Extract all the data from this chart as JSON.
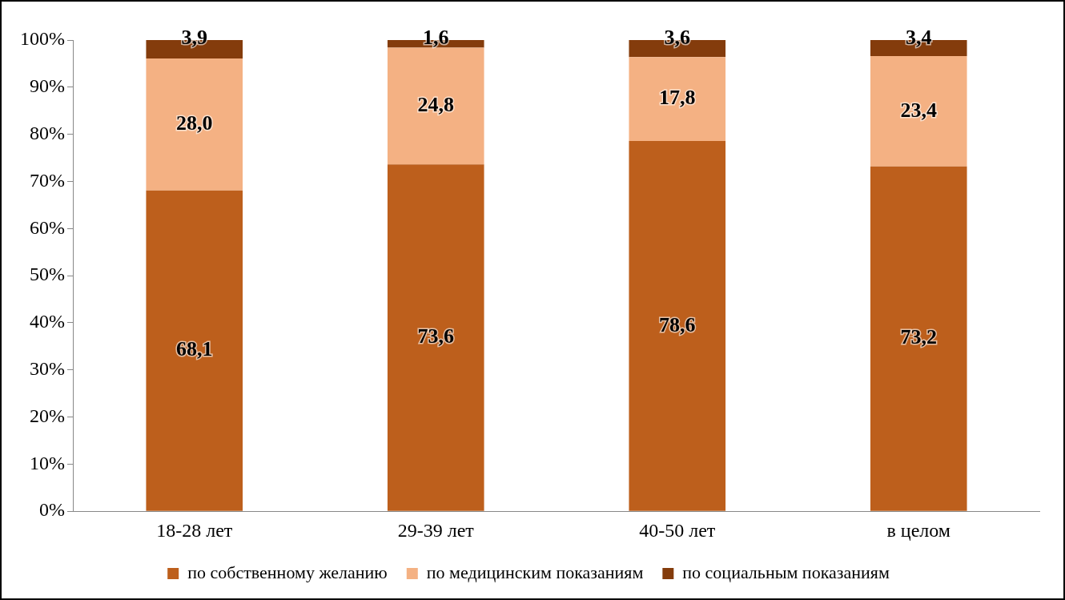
{
  "chart_data": {
    "type": "bar",
    "stacked": true,
    "categories": [
      "18-28 лет",
      "29-39 лет",
      "40-50 лет",
      "в целом"
    ],
    "series": [
      {
        "name": "по собственному желанию",
        "color": "#bd5f1c",
        "values": [
          68.1,
          73.6,
          78.6,
          73.2
        ],
        "value_labels": [
          "68,1",
          "73,6",
          "78,6",
          "73,2"
        ]
      },
      {
        "name": "по медицинским показаниям",
        "color": "#f4b183",
        "values": [
          28.0,
          24.8,
          17.8,
          23.4
        ],
        "value_labels": [
          "28,0",
          "24,8",
          "17,8",
          "23,4"
        ]
      },
      {
        "name": "по социальным показаниям",
        "color": "#843c0c",
        "values": [
          3.9,
          1.6,
          3.6,
          3.4
        ],
        "value_labels": [
          "3,9",
          "1,6",
          "3,6",
          "3,4"
        ]
      }
    ],
    "ylim": [
      0,
      100
    ],
    "yticks": [
      {
        "value": 0,
        "label": "0%"
      },
      {
        "value": 10,
        "label": "10%"
      },
      {
        "value": 20,
        "label": "20%"
      },
      {
        "value": 30,
        "label": "30%"
      },
      {
        "value": 40,
        "label": "40%"
      },
      {
        "value": 50,
        "label": "50%"
      },
      {
        "value": 60,
        "label": "60%"
      },
      {
        "value": 70,
        "label": "70%"
      },
      {
        "value": 80,
        "label": "80%"
      },
      {
        "value": 90,
        "label": "90%"
      },
      {
        "value": 100,
        "label": "100%"
      }
    ],
    "grid": false,
    "legend": "bottom"
  }
}
